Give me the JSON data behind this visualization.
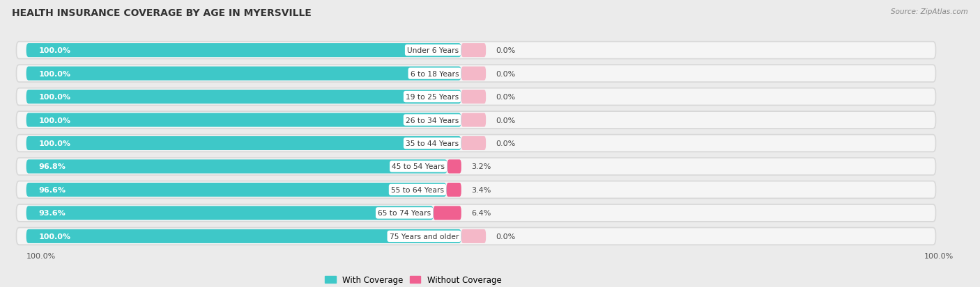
{
  "title": "HEALTH INSURANCE COVERAGE BY AGE IN MYERSVILLE",
  "source": "Source: ZipAtlas.com",
  "categories": [
    "Under 6 Years",
    "6 to 18 Years",
    "19 to 25 Years",
    "26 to 34 Years",
    "35 to 44 Years",
    "45 to 54 Years",
    "55 to 64 Years",
    "65 to 74 Years",
    "75 Years and older"
  ],
  "with_coverage": [
    100.0,
    100.0,
    100.0,
    100.0,
    100.0,
    96.8,
    96.6,
    93.6,
    100.0
  ],
  "without_coverage": [
    0.0,
    0.0,
    0.0,
    0.0,
    0.0,
    3.2,
    3.4,
    6.4,
    0.0
  ],
  "color_with": "#3EC8C8",
  "color_without_large": "#F06090",
  "color_without_small": "#F4B8C8",
  "bg_color": "#EBEBEB",
  "bar_bg_color": "#F5F5F5",
  "bar_shadow_color": "#D8D8D8",
  "title_fontsize": 10,
  "label_fontsize": 8,
  "tick_fontsize": 8,
  "legend_fontsize": 8.5
}
